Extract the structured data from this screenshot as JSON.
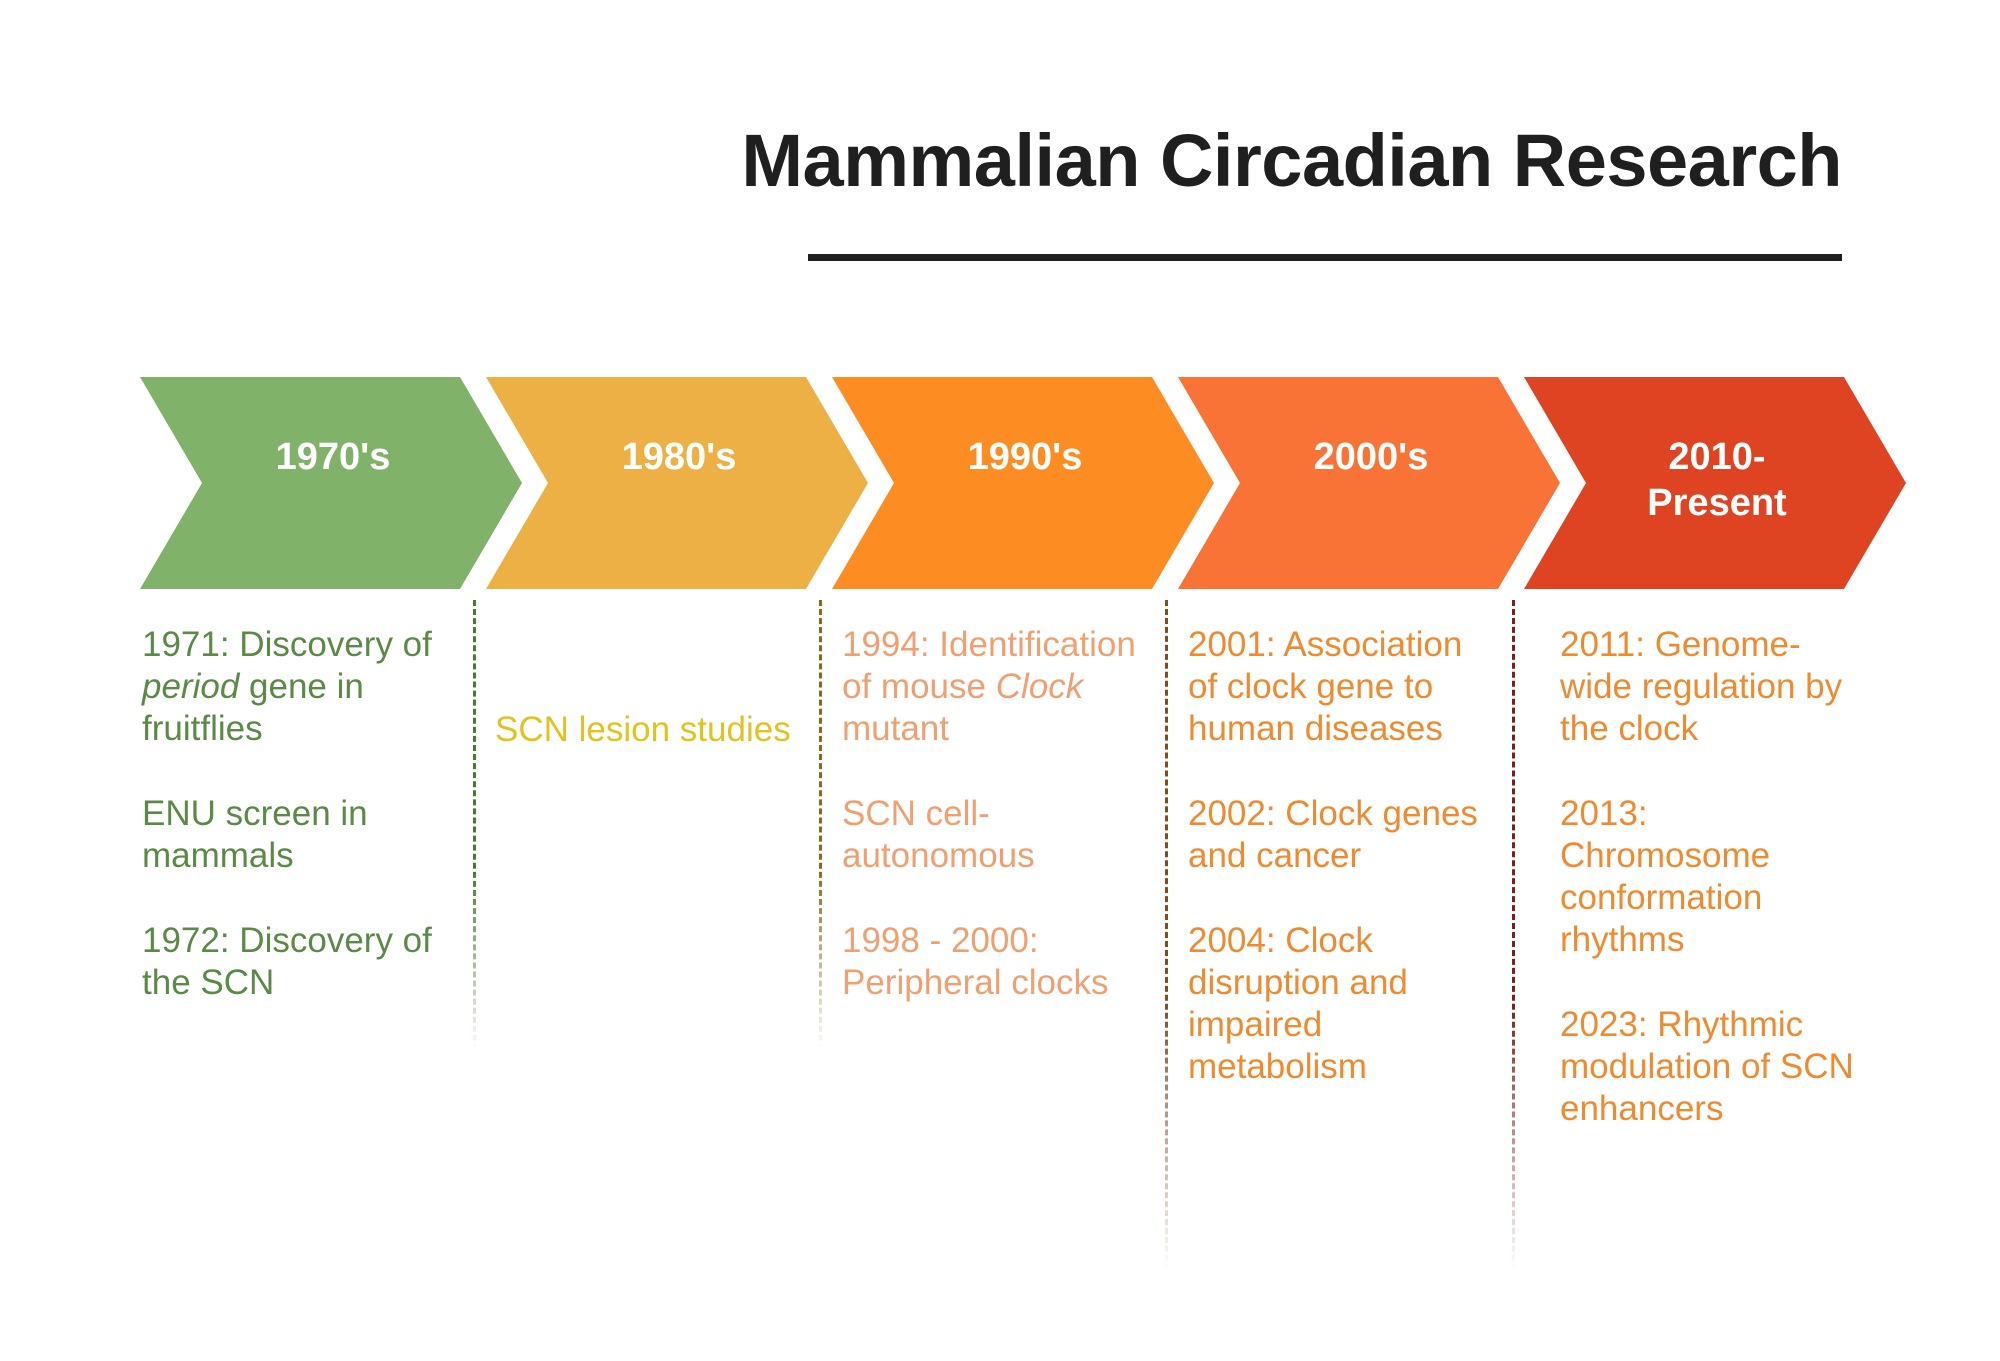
{
  "title": "Mammalian Circadian Research",
  "colors": {
    "title": "#1f1f1f",
    "dividers": [
      "#4a7a2e",
      "#8a6a1a",
      "#8a4a1a",
      "#7a2020"
    ]
  },
  "eras": [
    {
      "label": "1970's",
      "color": "#80b26a",
      "text_color": "#5a8a45"
    },
    {
      "label": "1980's",
      "color": "#edb045",
      "text_color": "#e2c21e"
    },
    {
      "label": "1990's",
      "color": "#fd8c22",
      "text_color": "#f0a070"
    },
    {
      "label": "2000's",
      "color": "#f87335",
      "text_color": "#ef8a2f"
    },
    {
      "label": "2010-\nPresent",
      "color": "#df4422",
      "text_color": "#ef8a2f"
    }
  ],
  "columns": [
    {
      "events": [
        {
          "parts": [
            {
              "text": "1971: Discovery of "
            },
            {
              "text": "period",
              "italic": true
            },
            {
              "text": " gene in fruitflies"
            }
          ]
        },
        {
          "parts": [
            {
              "text": "ENU screen in mammals"
            }
          ]
        },
        {
          "parts": [
            {
              "text": "1972:  Discovery of the SCN"
            }
          ]
        }
      ]
    },
    {
      "events": [
        {
          "parts": [
            {
              "text": "SCN lesion studies"
            }
          ]
        }
      ]
    },
    {
      "events": [
        {
          "parts": [
            {
              "text": "1994: Identification of mouse "
            },
            {
              "text": "Clock",
              "italic": true
            },
            {
              "text": " mutant"
            }
          ]
        },
        {
          "parts": [
            {
              "text": "SCN cell-autonomous"
            }
          ]
        },
        {
          "parts": [
            {
              "text": "1998 - 2000: Peripheral clocks"
            }
          ]
        }
      ]
    },
    {
      "events": [
        {
          "parts": [
            {
              "text": "2001: Association of clock gene to human diseases"
            }
          ]
        },
        {
          "parts": [
            {
              "text": "2002: Clock genes and cancer"
            }
          ]
        },
        {
          "parts": [
            {
              "text": "2004: Clock disruption and impaired metabolism"
            }
          ]
        }
      ]
    },
    {
      "events": [
        {
          "parts": [
            {
              "text": "2011: Genome-wide regulation by the clock"
            }
          ]
        },
        {
          "parts": [
            {
              "text": "2013: Chromosome conformation rhythms"
            }
          ]
        },
        {
          "parts": [
            {
              "text": "2023: Rhythmic modulation of SCN enhancers"
            }
          ]
        }
      ]
    }
  ]
}
